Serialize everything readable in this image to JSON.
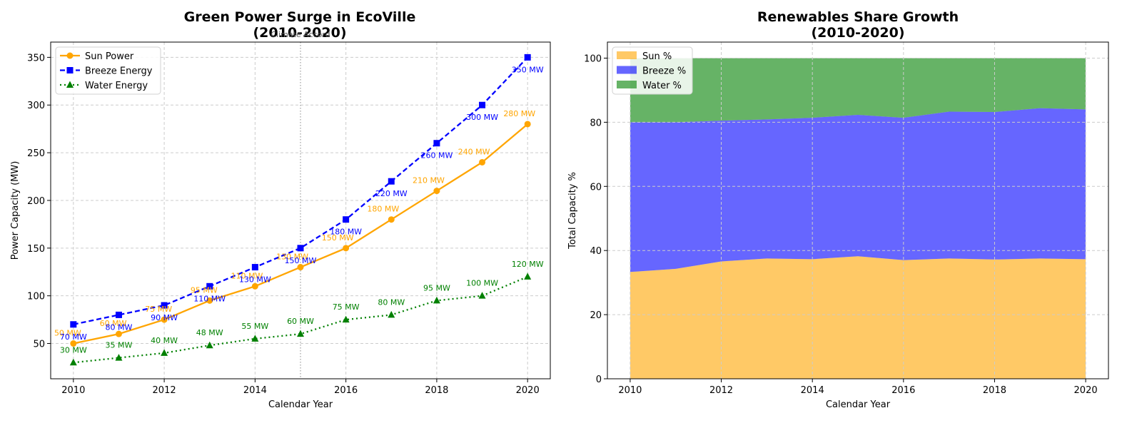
{
  "chart_data": [
    {
      "type": "line",
      "title": "Green Power Surge in EcoVille",
      "subtitle": "(2010-2020)",
      "xlabel": "Calendar Year",
      "ylabel": "Power Capacity (MW)",
      "xlim": [
        2009.5,
        2020.5
      ],
      "ylim": [
        13,
        366
      ],
      "x": [
        2010,
        2011,
        2012,
        2013,
        2014,
        2015,
        2016,
        2017,
        2018,
        2019,
        2020
      ],
      "xticks": [
        2010,
        2012,
        2014,
        2016,
        2018,
        2020
      ],
      "yticks": [
        50,
        100,
        150,
        200,
        250,
        300,
        350
      ],
      "grid": true,
      "legend_position": "top-left",
      "series": [
        {
          "name": "Sun Power",
          "color": "#ffa500",
          "marker": "circle",
          "linestyle": "solid",
          "values": [
            50,
            60,
            75,
            95,
            110,
            130,
            150,
            180,
            210,
            240,
            280
          ]
        },
        {
          "name": "Breeze Energy",
          "color": "#0000ff",
          "marker": "square",
          "linestyle": "dashed",
          "values": [
            70,
            80,
            90,
            110,
            130,
            150,
            180,
            220,
            260,
            300,
            350
          ]
        },
        {
          "name": "Water Energy",
          "color": "#008000",
          "marker": "triangle",
          "linestyle": "dotted",
          "values": [
            30,
            35,
            40,
            48,
            55,
            60,
            75,
            80,
            95,
            100,
            120
          ]
        }
      ],
      "data_label_suffix": " MW",
      "annotation": {
        "text": "Climate Accord",
        "x": 2015
      }
    },
    {
      "type": "area",
      "stacked": true,
      "title": "Renewables Share Growth",
      "subtitle": "(2010-2020)",
      "xlabel": "Calendar Year",
      "ylabel": "Total Capacity %",
      "xlim": [
        2009.5,
        2020.5
      ],
      "ylim": [
        0,
        105
      ],
      "x": [
        2010,
        2011,
        2012,
        2013,
        2014,
        2015,
        2016,
        2017,
        2018,
        2019,
        2020
      ],
      "xticks": [
        2010,
        2012,
        2014,
        2016,
        2018,
        2020
      ],
      "yticks": [
        0,
        20,
        40,
        60,
        80,
        100
      ],
      "grid": true,
      "legend_position": "top-left",
      "series": [
        {
          "name": "Sun %",
          "color": "#ffa500",
          "opacity": 0.6,
          "values": [
            33.3,
            34.3,
            36.6,
            37.5,
            37.3,
            38.2,
            37.0,
            37.5,
            37.2,
            37.5,
            37.3
          ]
        },
        {
          "name": "Breeze %",
          "color": "#0000ff",
          "opacity": 0.6,
          "values": [
            46.7,
            45.7,
            43.9,
            43.4,
            44.1,
            44.1,
            44.4,
            45.8,
            46.0,
            46.9,
            46.7
          ]
        },
        {
          "name": "Water %",
          "color": "#008000",
          "opacity": 0.6,
          "values": [
            20.0,
            20.0,
            19.5,
            19.1,
            18.6,
            17.7,
            18.6,
            16.7,
            16.8,
            15.6,
            16.0
          ]
        }
      ]
    }
  ]
}
